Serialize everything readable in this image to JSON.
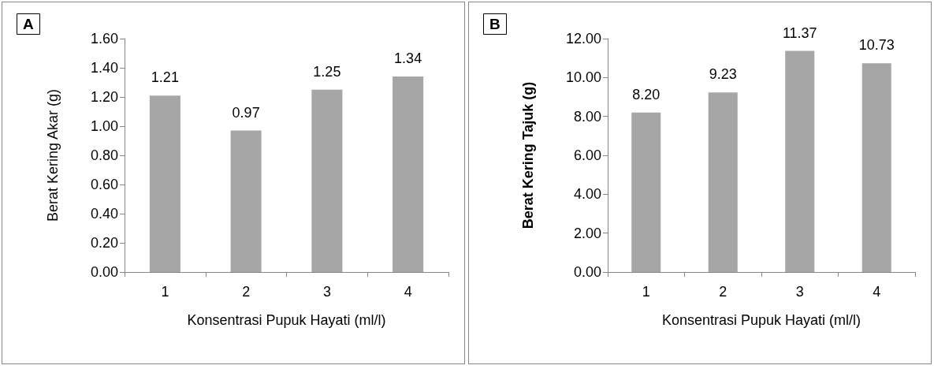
{
  "chart_data": [
    {
      "type": "bar",
      "title": "A",
      "xlabel": "Konsentrasi Pupuk Hayati (ml/l)",
      "ylabel": "Berat Kering Akar (g)",
      "categories": [
        "1",
        "2",
        "3",
        "4"
      ],
      "values": [
        1.21,
        0.97,
        1.25,
        1.34
      ],
      "value_labels": [
        "1.21",
        "0.97",
        "1.25",
        "1.34"
      ],
      "color": "#a6a6a6",
      "ylim": [
        0,
        1.6
      ],
      "yticks": [
        {
          "value": 0,
          "label": "0.00"
        },
        {
          "value": 0.2,
          "label": "0.20"
        },
        {
          "value": 0.4,
          "label": "0.40"
        },
        {
          "value": 0.6,
          "label": "0.60"
        },
        {
          "value": 0.8,
          "label": "0.80"
        },
        {
          "value": 1,
          "label": "1.00"
        },
        {
          "value": 1.2,
          "label": "1.20"
        },
        {
          "value": 1.4,
          "label": "1.40"
        },
        {
          "value": 1.6,
          "label": "1.60"
        }
      ]
    },
    {
      "type": "bar",
      "title": "B",
      "xlabel": "Konsentrasi Pupuk Hayati (ml/l)",
      "ylabel": "Berat Kering Tajuk (g)",
      "categories": [
        "1",
        "2",
        "3",
        "4"
      ],
      "values": [
        8.2,
        9.23,
        11.37,
        10.73
      ],
      "value_labels": [
        "8.20",
        "9.23",
        "11.37",
        "10.73"
      ],
      "color": "#a6a6a6",
      "ylim": [
        0,
        12
      ],
      "yticks": [
        {
          "value": 0,
          "label": "0.00"
        },
        {
          "value": 2,
          "label": "2.00"
        },
        {
          "value": 4,
          "label": "4.00"
        },
        {
          "value": 6,
          "label": "6.00"
        },
        {
          "value": 8,
          "label": "8.00"
        },
        {
          "value": 10,
          "label": "10.00"
        },
        {
          "value": 12,
          "label": "12.00"
        }
      ]
    }
  ]
}
